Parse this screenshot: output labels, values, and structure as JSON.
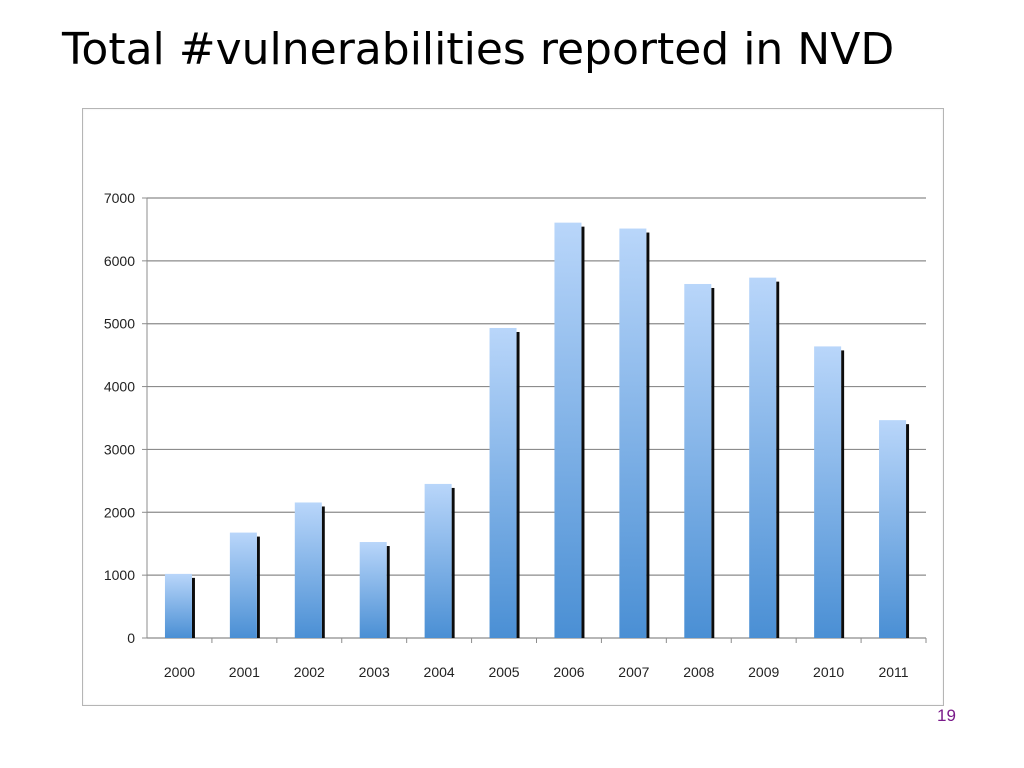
{
  "slide": {
    "title": "Total #vulnerabilities reported in NVD",
    "slide_number": "19"
  },
  "colors": {
    "bar_top": "#b9d6fa",
    "bar_bottom": "#4a8fd4",
    "bar_shadow": "#0c0c0c",
    "gridline": "#8c8c8c",
    "axis": "#8c8c8c",
    "slide_number": "#7a1a8a"
  },
  "chart_data": {
    "type": "bar",
    "title": "",
    "xlabel": "",
    "ylabel": "",
    "categories": [
      "2000",
      "2001",
      "2002",
      "2003",
      "2004",
      "2005",
      "2006",
      "2007",
      "2008",
      "2009",
      "2010",
      "2011"
    ],
    "values": [
      1020,
      1677,
      2156,
      1527,
      2451,
      4932,
      6608,
      6514,
      5632,
      5733,
      4639,
      3466
    ],
    "ylim": [
      0,
      7000
    ],
    "yticks": [
      "0",
      "1000",
      "2000",
      "3000",
      "4000",
      "5000",
      "6000",
      "7000"
    ],
    "grid": true,
    "legend": "none"
  }
}
